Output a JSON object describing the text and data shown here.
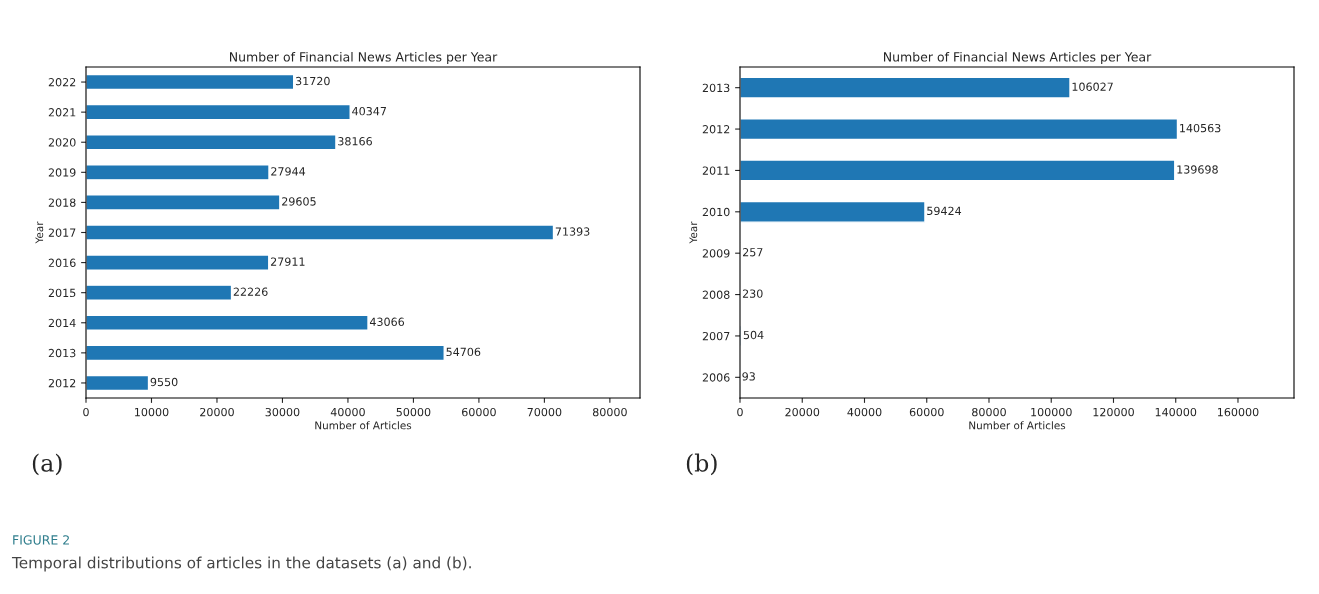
{
  "chart_data": [
    {
      "type": "bar",
      "orientation": "horizontal",
      "title": "Number of Financial News Articles per Year",
      "xlabel": "Number of Articles",
      "ylabel": "Year",
      "categories": [
        "2022",
        "2021",
        "2020",
        "2019",
        "2018",
        "2017",
        "2016",
        "2015",
        "2014",
        "2013",
        "2012"
      ],
      "values": [
        31720,
        40347,
        38166,
        27944,
        29605,
        71393,
        27911,
        22226,
        43066,
        54706,
        9550
      ],
      "color": "#1f77b4",
      "xlim": [
        0,
        84600
      ],
      "xticks": [
        0,
        10000,
        20000,
        30000,
        40000,
        50000,
        60000,
        70000,
        80000
      ],
      "data_labels": true,
      "grid": false,
      "legend": false,
      "annotations": [
        "(a)",
        "FIGURE 2",
        "Temporal distributions of articles in the datasets (a) and (b)."
      ]
    },
    {
      "type": "bar",
      "orientation": "horizontal",
      "title": "Number of Financial News Articles per Year",
      "xlabel": "Number of Articles",
      "ylabel": "Year",
      "categories": [
        "2013",
        "2012",
        "2011",
        "2010",
        "2009",
        "2008",
        "2007",
        "2006"
      ],
      "values": [
        106027,
        140563,
        139698,
        59424,
        257,
        230,
        504,
        93
      ],
      "color": "#1f77b4",
      "xlim": [
        0,
        178000
      ],
      "xticks": [
        0,
        20000,
        40000,
        60000,
        80000,
        100000,
        120000,
        140000,
        160000
      ],
      "data_labels": true,
      "grid": false,
      "legend": false,
      "annotations": [
        "(b)"
      ]
    }
  ]
}
